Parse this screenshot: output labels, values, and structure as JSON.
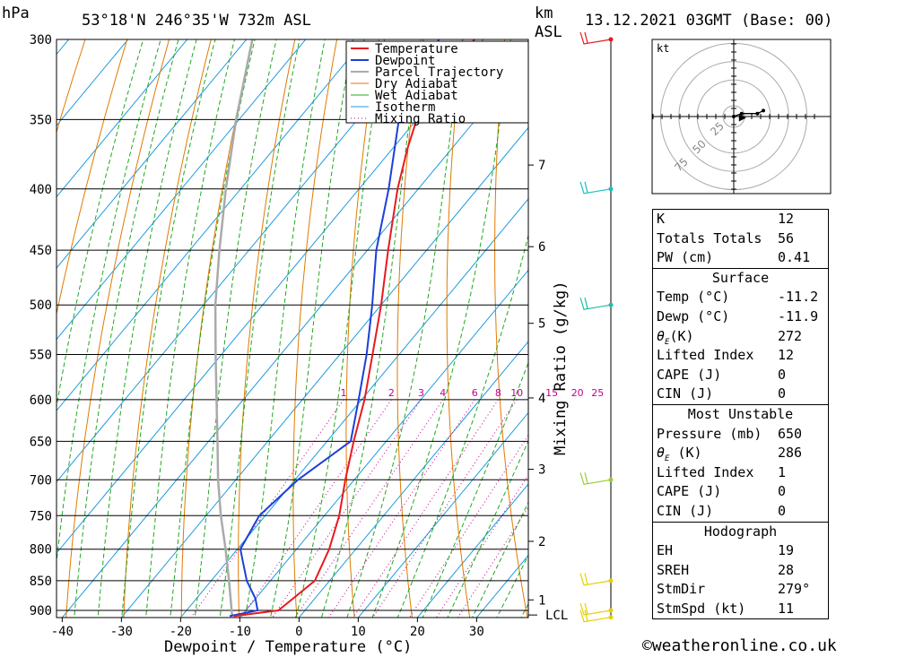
{
  "header": {
    "location": "53°18'N 246°35'W 732m ASL",
    "datetime": "13.12.2021 03GMT (Base: 00)",
    "hpa_unit": "hPa",
    "km_unit": "km",
    "asl_unit": "ASL"
  },
  "chart_data": {
    "type": "line",
    "title": "53°18'N 246°35'W 732m ASL",
    "xlabel": "Dewpoint / Temperature (°C)",
    "ylabel": "hPa",
    "right_axis_label": "Mixing Ratio (g/kg)",
    "x_ticks": [
      "-40",
      "-30",
      "-20",
      "-10",
      "0",
      "10",
      "20",
      "30"
    ],
    "pressure_ticks": [
      "300",
      "350",
      "400",
      "450",
      "500",
      "550",
      "600",
      "650",
      "700",
      "750",
      "800",
      "850",
      "900"
    ],
    "km_ticks": [
      {
        "label": "7",
        "p": 382
      },
      {
        "label": "6",
        "p": 447
      },
      {
        "label": "5",
        "p": 518
      },
      {
        "label": "4",
        "p": 598
      },
      {
        "label": "3",
        "p": 686
      },
      {
        "label": "2",
        "p": 788
      },
      {
        "label": "1",
        "p": 882
      }
    ],
    "lcl_label": "LCL",
    "lcl_p": 908,
    "mixing_ratio_labels": [
      "1",
      "2",
      "3",
      "4",
      "6",
      "8",
      "10",
      "15",
      "20",
      "25"
    ],
    "mixing_ratio_values": [
      1,
      2,
      3,
      4,
      6,
      8,
      10,
      15,
      20,
      25
    ],
    "legend": [
      "Temperature",
      "Dewpoint",
      "Parcel Trajectory",
      "Dry Adiabat",
      "Wet Adiabat",
      "Isotherm",
      "Mixing Ratio"
    ],
    "colors": {
      "temperature": "#e8191f",
      "dewpoint": "#1c3fd8",
      "parcel": "#aaaaaa",
      "dry_adiabat": "#e07a00",
      "wet_adiabat": "#1fa81f",
      "isotherm": "#1d9be0",
      "mixing_ratio": "#c00090"
    },
    "temperature": [
      {
        "p": 910,
        "t": -11.2
      },
      {
        "p": 900,
        "t": -4.5
      },
      {
        "p": 880,
        "t": -3.7
      },
      {
        "p": 850,
        "t": -2.5
      },
      {
        "p": 800,
        "t": -4.5
      },
      {
        "p": 750,
        "t": -7.5
      },
      {
        "p": 700,
        "t": -11.5
      },
      {
        "p": 650,
        "t": -15.5
      },
      {
        "p": 600,
        "t": -19.5
      },
      {
        "p": 550,
        "t": -24.5
      },
      {
        "p": 500,
        "t": -30.0
      },
      {
        "p": 450,
        "t": -36.5
      },
      {
        "p": 400,
        "t": -43.5
      },
      {
        "p": 370,
        "t": -47.5
      },
      {
        "p": 350,
        "t": -50.0
      },
      {
        "p": 330,
        "t": -50.5
      },
      {
        "p": 300,
        "t": -51.5
      }
    ],
    "dewpoint": [
      {
        "p": 910,
        "t": -11.9
      },
      {
        "p": 900,
        "t": -8.0
      },
      {
        "p": 880,
        "t": -10.0
      },
      {
        "p": 850,
        "t": -14.0
      },
      {
        "p": 800,
        "t": -19.5
      },
      {
        "p": 750,
        "t": -21.0
      },
      {
        "p": 700,
        "t": -19.5
      },
      {
        "p": 650,
        "t": -16.0
      },
      {
        "p": 600,
        "t": -20.5
      },
      {
        "p": 550,
        "t": -25.5
      },
      {
        "p": 500,
        "t": -31.5
      },
      {
        "p": 450,
        "t": -38.5
      },
      {
        "p": 400,
        "t": -45.0
      },
      {
        "p": 350,
        "t": -53.0
      },
      {
        "p": 330,
        "t": -54.5
      },
      {
        "p": 300,
        "t": -57.5
      }
    ],
    "parcel": [
      {
        "p": 910,
        "t": -11.5
      },
      {
        "p": 850,
        "t": -17.0
      },
      {
        "p": 800,
        "t": -22.0
      },
      {
        "p": 750,
        "t": -27.5
      },
      {
        "p": 700,
        "t": -33.0
      },
      {
        "p": 650,
        "t": -38.5
      },
      {
        "p": 600,
        "t": -44.5
      },
      {
        "p": 550,
        "t": -51.0
      },
      {
        "p": 500,
        "t": -58.0
      },
      {
        "p": 450,
        "t": -65.0
      },
      {
        "p": 400,
        "t": -72.5
      },
      {
        "p": 350,
        "t": -80.5
      },
      {
        "p": 300,
        "t": -89.0
      }
    ],
    "wind_levels": [
      {
        "p": 300,
        "color": "#e8191f"
      },
      {
        "p": 400,
        "color": "#1bc0c0"
      },
      {
        "p": 500,
        "color": "#1bc0a8"
      },
      {
        "p": 700,
        "color": "#9acd32"
      },
      {
        "p": 850,
        "color": "#e6d000"
      },
      {
        "p": 900,
        "color": "#e6d000"
      },
      {
        "p": 912,
        "color": "#e6d000"
      }
    ]
  },
  "hodograph": {
    "unit": "kt",
    "ring_labels": [
      "25",
      "50",
      "75"
    ],
    "trace": [
      {
        "u": 0,
        "v": 0
      },
      {
        "u": 4,
        "v": 1.5
      },
      {
        "u": 12,
        "v": 1.5
      },
      {
        "u": 15,
        "v": 3
      }
    ],
    "storm_motion": {
      "u": 4,
      "v": -0.7
    }
  },
  "indices": {
    "k_label": "K",
    "k_value": "12",
    "tt_label": "Totals Totals",
    "tt_value": "56",
    "pw_label": "PW (cm)",
    "pw_value": "0.41"
  },
  "surface": {
    "title": "Surface",
    "temp_label": "Temp (°C)",
    "temp_value": "-11.2",
    "dewp_label": "Dewp (°C)",
    "dewp_value": "-11.9",
    "theta_label": "(K)",
    "theta_value": "272",
    "li_label": "Lifted Index",
    "li_value": "12",
    "cape_label": "CAPE (J)",
    "cape_value": "0",
    "cin_label": "CIN (J)",
    "cin_value": "0"
  },
  "most_unstable": {
    "title": "Most Unstable",
    "pressure_label": "Pressure (mb)",
    "pressure_value": "650",
    "theta_label": "(K)",
    "theta_value": "286",
    "li_label": "Lifted Index",
    "li_value": "1",
    "cape_label": "CAPE (J)",
    "cape_value": "0",
    "cin_label": "CIN (J)",
    "cin_value": "0"
  },
  "hodo_stats": {
    "title": "Hodograph",
    "eh_label": "EH",
    "eh_value": "19",
    "sreh_label": "SREH",
    "sreh_value": "28",
    "stmdir_label": "StmDir",
    "stmdir_value": "279°",
    "stmspd_label": "StmSpd (kt)",
    "stmspd_value": "11"
  },
  "copyright": "©weatheronline.co.uk"
}
